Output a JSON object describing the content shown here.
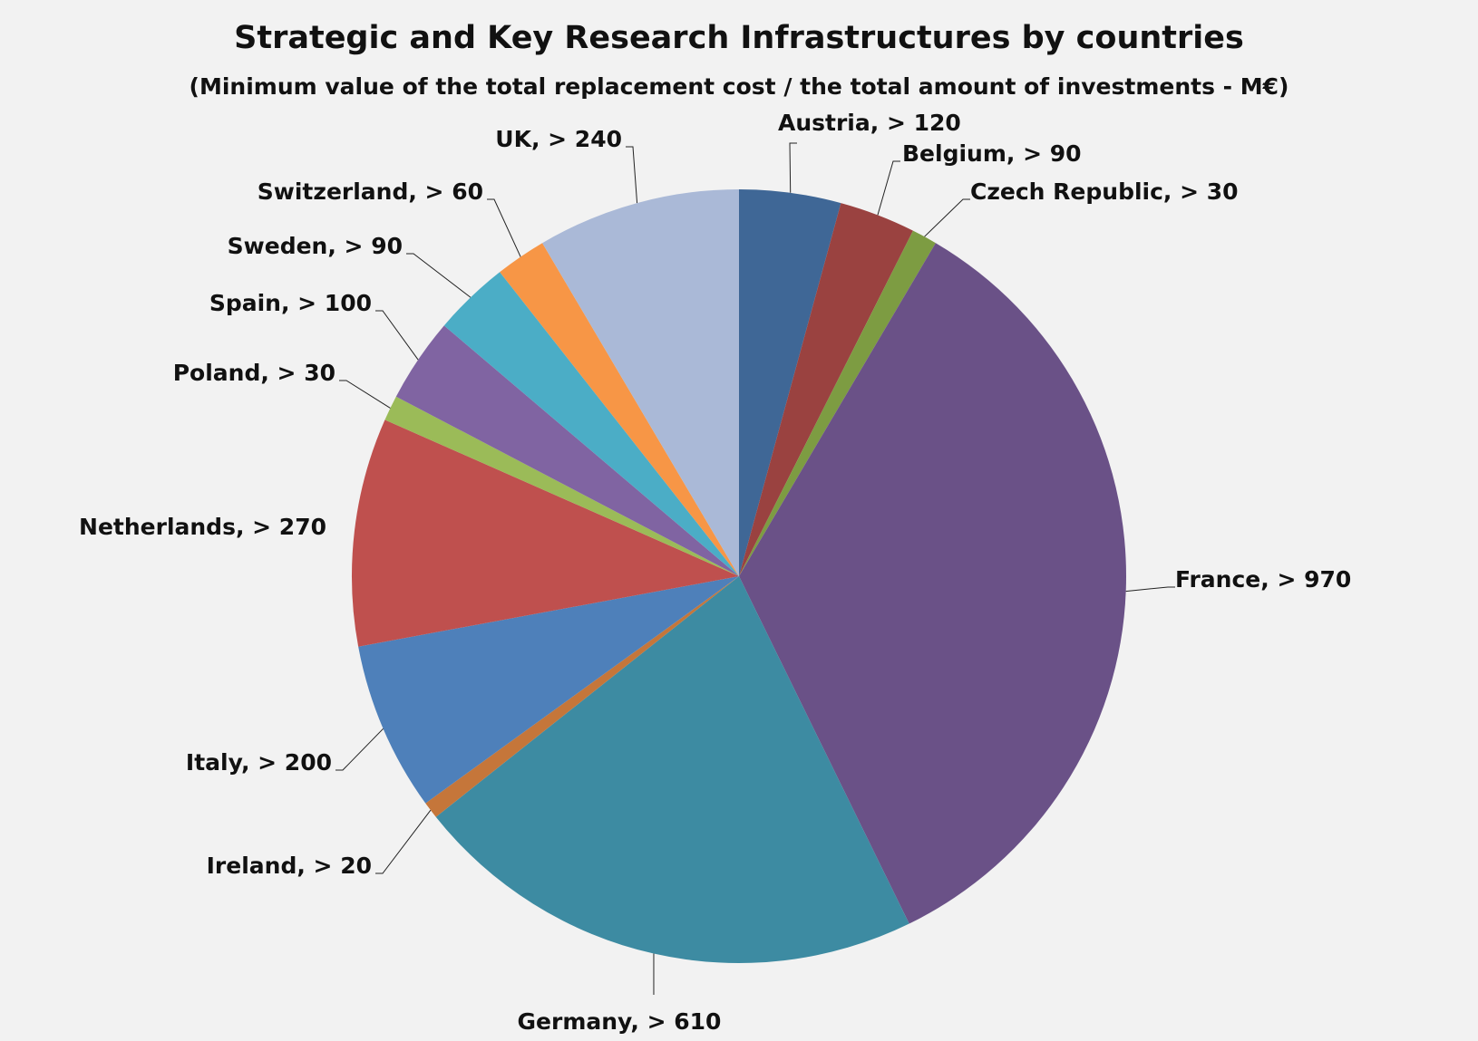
{
  "chart_data": {
    "type": "pie",
    "title": "Strategic and Key Research Infrastructures by countries",
    "subtitle": "(Minimum value of the total replacement cost / the total amount of investments - M€)",
    "slices": [
      {
        "name": "Austria",
        "value": 120,
        "label": "Austria, > 120",
        "color": "#3f6796"
      },
      {
        "name": "Belgium",
        "value": 90,
        "label": "Belgium, > 90",
        "color": "#9a4240"
      },
      {
        "name": "Czech Republic",
        "value": 30,
        "label": "Czech Republic, > 30",
        "color": "#7d9c42"
      },
      {
        "name": "France",
        "value": 970,
        "label": "France, > 970",
        "color": "#6a5187"
      },
      {
        "name": "Germany",
        "value": 610,
        "label": "Germany, > 610",
        "color": "#3d8ba2"
      },
      {
        "name": "Ireland",
        "value": 20,
        "label": "Ireland, > 20",
        "color": "#c5763a"
      },
      {
        "name": "Italy",
        "value": 200,
        "label": "Italy, > 200",
        "color": "#4e80ba"
      },
      {
        "name": "Netherlands",
        "value": 270,
        "label": "Netherlands, > 270",
        "color": "#bf504e"
      },
      {
        "name": "Poland",
        "value": 30,
        "label": "Poland, > 30",
        "color": "#9bbb58"
      },
      {
        "name": "Spain",
        "value": 100,
        "label": "Spain, > 100",
        "color": "#8064a2"
      },
      {
        "name": "Sweden",
        "value": 90,
        "label": "Sweden, > 90",
        "color": "#4badc6"
      },
      {
        "name": "Switzerland",
        "value": 60,
        "label": "Switzerland, > 60",
        "color": "#f79646"
      },
      {
        "name": "UK",
        "value": 240,
        "label": "UK, > 240",
        "color": "#aab9d7"
      }
    ],
    "legend": "none"
  }
}
